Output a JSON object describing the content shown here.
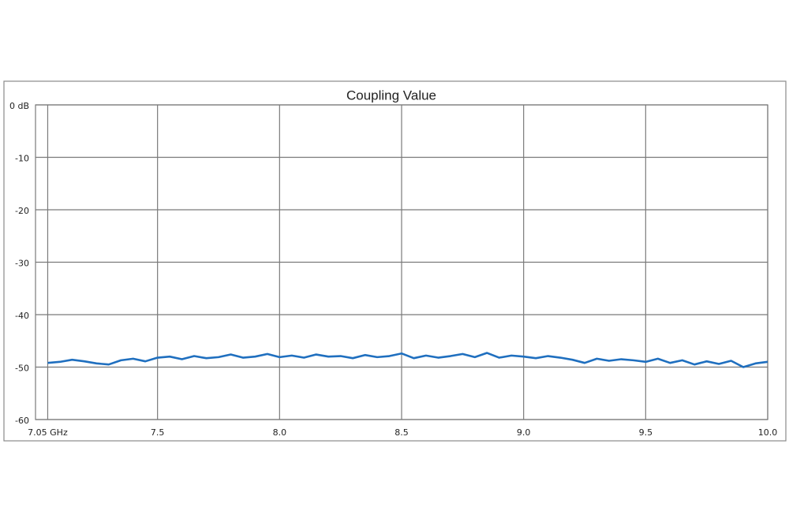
{
  "chart_data": {
    "type": "line",
    "title": "Coupling Value",
    "x": [
      7.05,
      7.1,
      7.15,
      7.2,
      7.25,
      7.3,
      7.35,
      7.4,
      7.45,
      7.5,
      7.55,
      7.6,
      7.65,
      7.7,
      7.75,
      7.8,
      7.85,
      7.9,
      7.95,
      8.0,
      8.05,
      8.1,
      8.15,
      8.2,
      8.25,
      8.3,
      8.35,
      8.4,
      8.45,
      8.5,
      8.55,
      8.6,
      8.65,
      8.7,
      8.75,
      8.8,
      8.85,
      8.9,
      8.95,
      9.0,
      9.05,
      9.1,
      9.15,
      9.2,
      9.25,
      9.3,
      9.35,
      9.4,
      9.45,
      9.5,
      9.55,
      9.6,
      9.65,
      9.7,
      9.75,
      9.8,
      9.85,
      9.9,
      9.95,
      10.0
    ],
    "series": [
      {
        "color": "#1f6fbf",
        "values": [
          -49.2,
          -49.0,
          -48.6,
          -48.9,
          -49.3,
          -49.5,
          -48.7,
          -48.4,
          -48.9,
          -48.2,
          -48.0,
          -48.5,
          -47.9,
          -48.3,
          -48.1,
          -47.6,
          -48.2,
          -48.0,
          -47.5,
          -48.1,
          -47.8,
          -48.2,
          -47.6,
          -48.0,
          -47.9,
          -48.3,
          -47.7,
          -48.1,
          -47.9,
          -47.4,
          -48.3,
          -47.8,
          -48.2,
          -47.9,
          -47.5,
          -48.1,
          -47.3,
          -48.2,
          -47.8,
          -48.0,
          -48.3,
          -47.9,
          -48.2,
          -48.6,
          -49.2,
          -48.4,
          -48.8,
          -48.5,
          -48.7,
          -49.0,
          -48.4,
          -49.2,
          -48.7,
          -49.5,
          -48.9,
          -49.4,
          -48.8,
          -50.0,
          -49.3,
          -49.0
        ]
      }
    ],
    "xlim": [
      7.0,
      10.0
    ],
    "xticks": [
      {
        "value": 7.05,
        "label": "7.05 GHz"
      },
      7.5,
      {
        "value": 8,
        "label": "8.0"
      },
      8.5,
      {
        "value": 9,
        "label": "9.0"
      },
      9.5,
      {
        "value": 10,
        "label": "10.0"
      }
    ],
    "ylim": [
      -60,
      0
    ],
    "yticks": [
      {
        "value": 0,
        "label": "0 dB"
      },
      -10,
      -20,
      -30,
      -40,
      -50,
      -60
    ],
    "grid": true
  }
}
